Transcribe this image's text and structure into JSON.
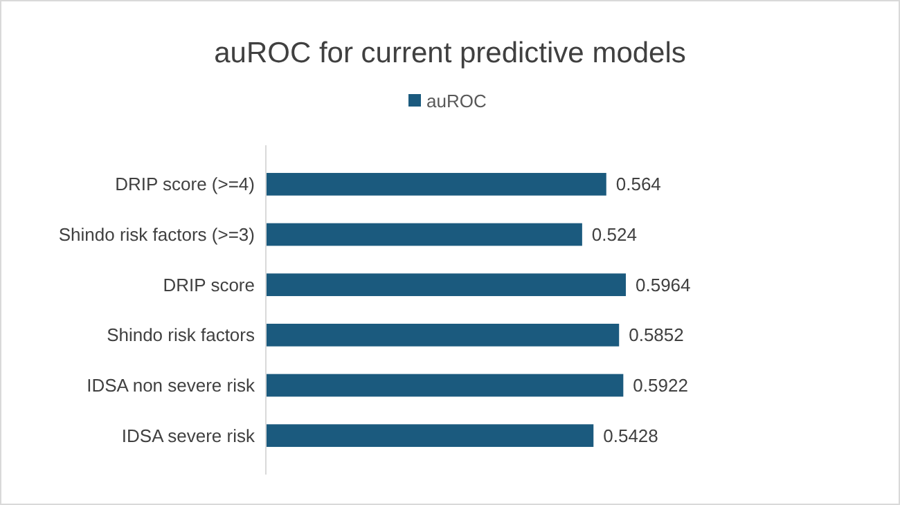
{
  "chart_data": {
    "type": "bar",
    "orientation": "horizontal",
    "title": "auROC for current predictive models",
    "categories": [
      "DRIP score (>=4)",
      "Shindo risk factors (>=3)",
      "DRIP score",
      "Shindo risk factors",
      "IDSA non severe risk",
      "IDSA severe risk"
    ],
    "series": [
      {
        "name": "auROC",
        "color": "#1b5a7e",
        "values": [
          0.564,
          0.524,
          0.5964,
          0.5852,
          0.5922,
          0.5428
        ]
      }
    ],
    "tick_labels": "y",
    "data_labels": true,
    "legend": "top"
  }
}
